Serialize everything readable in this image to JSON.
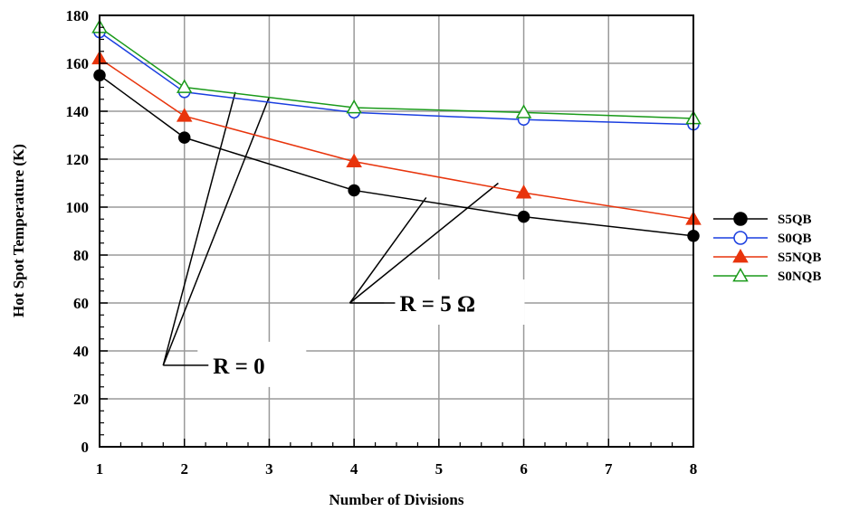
{
  "chart_data": {
    "type": "line",
    "xlabel": "Number of Divisions",
    "ylabel": "Hot Spot Temperature (K)",
    "xlim": [
      1,
      8
    ],
    "ylim": [
      0,
      180
    ],
    "xticks": [
      "1",
      "2",
      "3",
      "4",
      "5",
      "6",
      "7",
      "8"
    ],
    "yticks": [
      "0",
      "20",
      "40",
      "60",
      "80",
      "100",
      "120",
      "140",
      "160",
      "180"
    ],
    "grid": true,
    "legend_position": "right",
    "x": [
      1,
      2,
      4,
      6,
      8
    ],
    "series": [
      {
        "name": "S5QB",
        "marker": "circle-filled",
        "color": "#000000",
        "values": [
          155,
          129,
          107,
          96,
          88
        ]
      },
      {
        "name": "S0QB",
        "marker": "circle-open",
        "color": "#1a3ee0",
        "values": [
          173,
          148,
          139.5,
          136.5,
          134.5
        ]
      },
      {
        "name": "S5NQB",
        "marker": "triangle-filled",
        "color": "#e8340c",
        "values": [
          162,
          138,
          119,
          106,
          95
        ]
      },
      {
        "name": "S0NQB",
        "marker": "triangle-open",
        "color": "#1a9a1a",
        "values": [
          175,
          150,
          141.5,
          139.5,
          137
        ]
      }
    ],
    "annotations": [
      {
        "text": "R = 0",
        "anchor": [
          1.75,
          34
        ],
        "targets": [
          [
            2.6,
            148
          ],
          [
            3.0,
            146
          ]
        ]
      },
      {
        "text": "R = 5 Ω",
        "anchor": [
          3.95,
          60
        ],
        "targets": [
          [
            4.85,
            104
          ],
          [
            5.7,
            110
          ]
        ]
      }
    ]
  }
}
